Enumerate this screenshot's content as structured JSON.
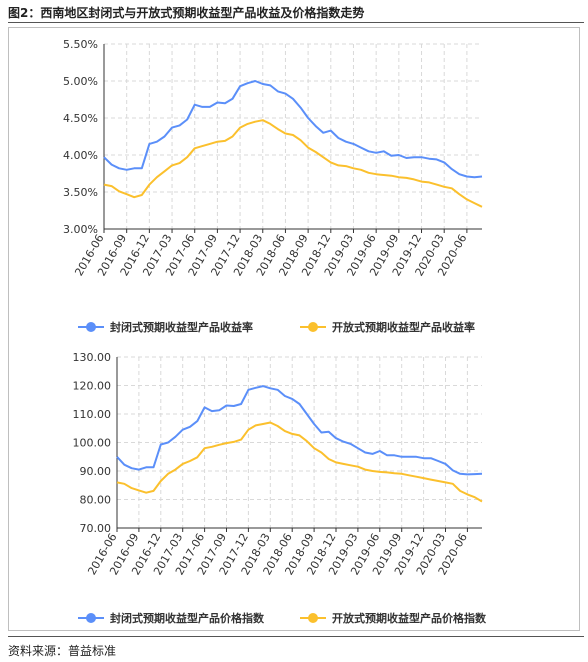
{
  "figure": {
    "title": "图2：西南地区封闭式与开放式预期收益型产品收益及价格指数走势",
    "source": "资料来源：普益标准"
  },
  "colors": {
    "closed": "#5B8FF9",
    "open": "#FBC02D",
    "grid": "#d9d9d9",
    "axis": "#333333"
  },
  "chart_data": [
    {
      "type": "line",
      "ylim": [
        3.0,
        5.5
      ],
      "yticks": [
        "3.00%",
        "3.50%",
        "4.00%",
        "4.50%",
        "5.00%",
        "5.50%"
      ],
      "xticks": [
        "2016-06",
        "2016-09",
        "2016-12",
        "2017-03",
        "2017-06",
        "2017-09",
        "2017-12",
        "2018-03",
        "2018-06",
        "2018-09",
        "2018-12",
        "2019-03",
        "2019-06",
        "2019-09",
        "2019-12",
        "2020-03",
        "2020-06"
      ],
      "x_start": "2016-06",
      "legend_position": "bottom-center",
      "series": [
        {
          "name": "封闭式预期收益型产品收益率",
          "values": [
            3.97,
            3.87,
            3.82,
            3.8,
            3.82,
            3.82,
            4.15,
            4.18,
            4.25,
            4.37,
            4.4,
            4.48,
            4.68,
            4.65,
            4.65,
            4.71,
            4.7,
            4.76,
            4.93,
            4.97,
            5.0,
            4.96,
            4.94,
            4.86,
            4.83,
            4.76,
            4.64,
            4.5,
            4.39,
            4.3,
            4.33,
            4.23,
            4.18,
            4.15,
            4.1,
            4.05,
            4.03,
            4.05,
            3.99,
            4.0,
            3.96,
            3.97,
            3.97,
            3.95,
            3.94,
            3.9,
            3.81,
            3.74,
            3.71,
            3.7,
            3.71
          ]
        },
        {
          "name": "开放式预期收益型产品收益率",
          "values": [
            3.6,
            3.58,
            3.51,
            3.47,
            3.43,
            3.46,
            3.6,
            3.7,
            3.78,
            3.86,
            3.89,
            3.97,
            4.09,
            4.12,
            4.15,
            4.18,
            4.19,
            4.25,
            4.37,
            4.42,
            4.45,
            4.47,
            4.42,
            4.35,
            4.29,
            4.27,
            4.2,
            4.1,
            4.04,
            3.97,
            3.9,
            3.86,
            3.85,
            3.82,
            3.8,
            3.76,
            3.74,
            3.73,
            3.72,
            3.7,
            3.69,
            3.67,
            3.64,
            3.63,
            3.6,
            3.57,
            3.55,
            3.47,
            3.4,
            3.35,
            3.3
          ]
        }
      ]
    },
    {
      "type": "line",
      "ylim": [
        70,
        130
      ],
      "yticks": [
        "70.00",
        "80.00",
        "90.00",
        "100.00",
        "110.00",
        "120.00",
        "130.00"
      ],
      "xticks": [
        "2016-06",
        "2016-09",
        "2016-12",
        "2017-03",
        "2017-06",
        "2017-09",
        "2017-12",
        "2018-03",
        "2018-06",
        "2018-09",
        "2018-12",
        "2019-03",
        "2019-06",
        "2019-09",
        "2019-12",
        "2020-03",
        "2020-06"
      ],
      "x_start": "2016-06",
      "legend_position": "bottom-center",
      "series": [
        {
          "name": "封闭式预期收益型产品价格指数",
          "values": [
            95.0,
            92.2,
            91.0,
            90.5,
            91.3,
            91.3,
            99.3,
            100.0,
            102.0,
            104.5,
            105.5,
            107.5,
            112.3,
            111.0,
            111.3,
            113.0,
            112.8,
            113.5,
            118.5,
            119.2,
            119.8,
            119.0,
            118.5,
            116.3,
            115.3,
            113.5,
            110.0,
            106.5,
            103.5,
            103.8,
            101.5,
            100.3,
            99.5,
            98.0,
            96.5,
            96.0,
            97.0,
            95.5,
            95.5,
            95.0,
            95.0,
            95.0,
            94.5,
            94.5,
            93.5,
            92.5,
            90.2,
            89.0,
            88.8,
            88.9,
            89.0
          ]
        },
        {
          "name": "开放式预期收益型产品价格指数",
          "values": [
            86.0,
            85.5,
            84.0,
            83.2,
            82.4,
            83.0,
            86.5,
            89.0,
            90.5,
            92.5,
            93.5,
            94.8,
            98.0,
            98.5,
            99.2,
            99.8,
            100.2,
            101.0,
            104.5,
            106.0,
            106.5,
            107.0,
            105.8,
            104.0,
            103.0,
            102.5,
            100.5,
            98.0,
            96.5,
            94.2,
            93.0,
            92.5,
            92.0,
            91.5,
            90.5,
            90.0,
            89.7,
            89.5,
            89.2,
            89.0,
            88.5,
            88.0,
            87.5,
            87.0,
            86.5,
            86.0,
            85.5,
            83.0,
            81.8,
            80.8,
            79.3
          ]
        }
      ]
    }
  ]
}
